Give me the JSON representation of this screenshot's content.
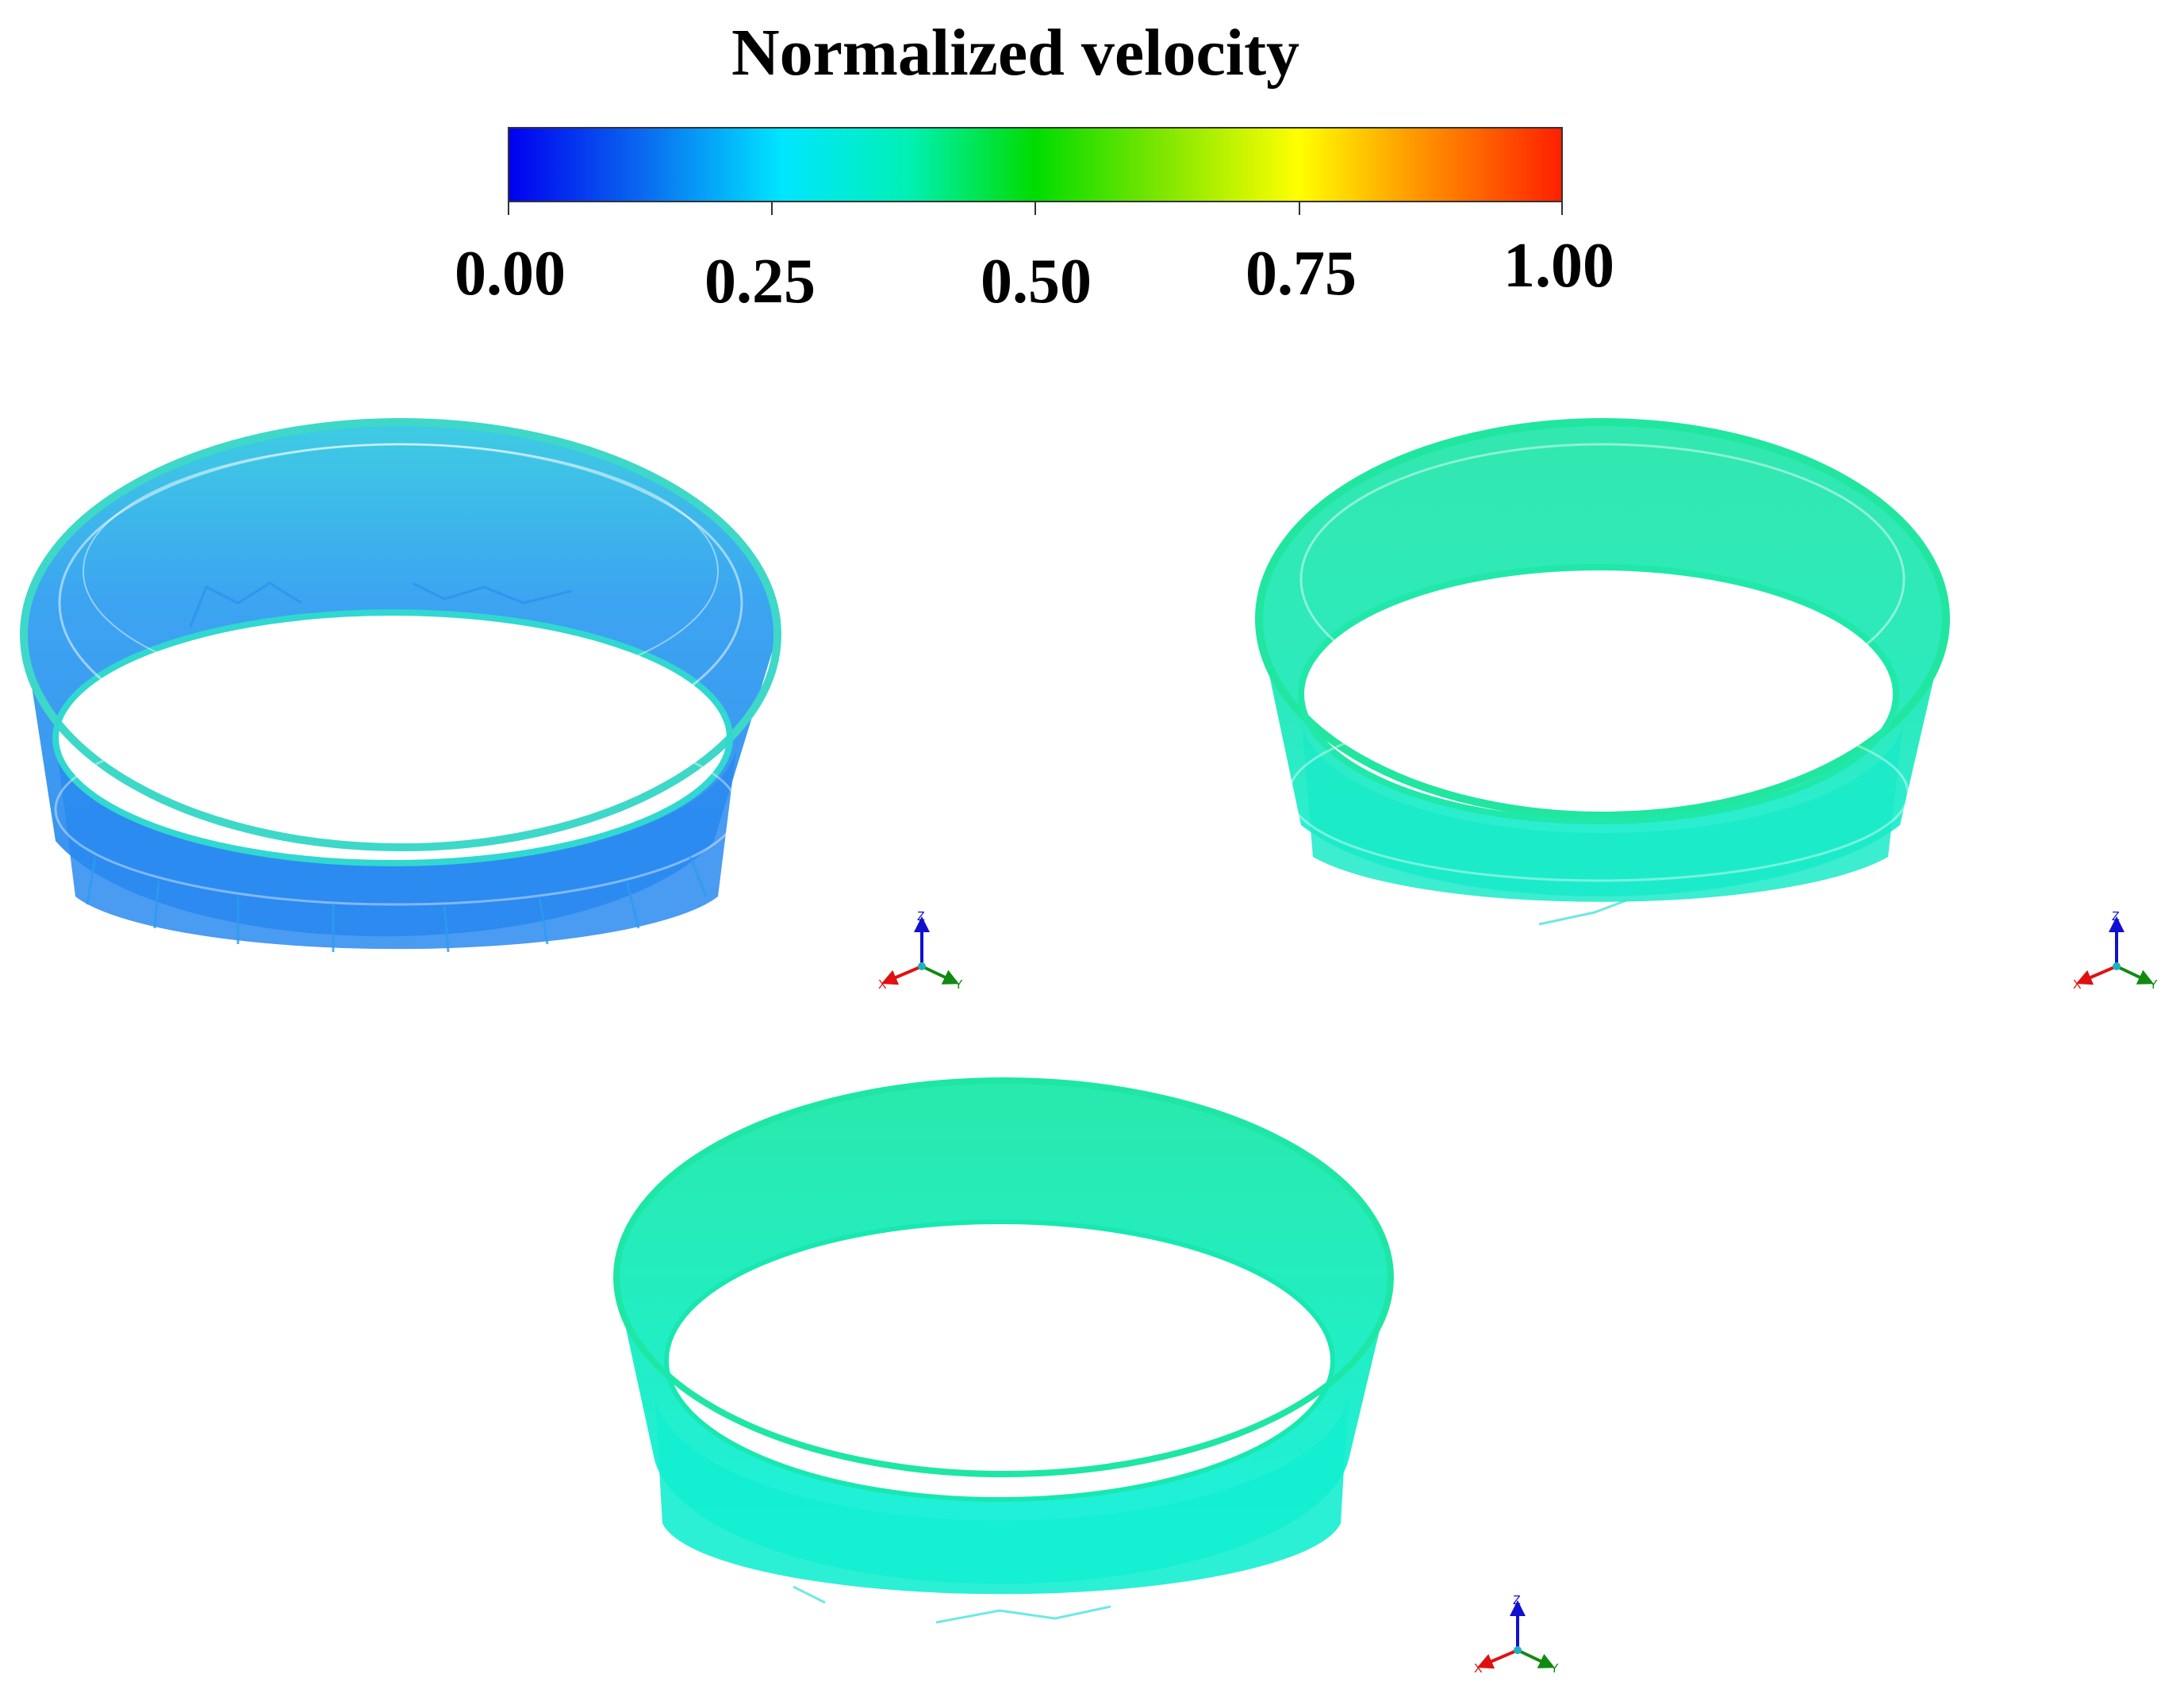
{
  "legend": {
    "title": "Normalized velocity",
    "ticks": [
      {
        "label": "0.00",
        "value": 0.0
      },
      {
        "label": "0.25",
        "value": 0.25
      },
      {
        "label": "0.50",
        "value": 0.5
      },
      {
        "label": "0.75",
        "value": 0.75
      },
      {
        "label": "1.00",
        "value": 1.0
      }
    ]
  },
  "views": [
    {
      "name": "ring-view-left",
      "dominant_color": "#2b8ef0",
      "rim_color": "#3fd6d0"
    },
    {
      "name": "ring-view-right",
      "dominant_color": "#1ee6b4",
      "rim_color": "#20e8a0"
    },
    {
      "name": "ring-view-bottom",
      "dominant_color": "#16edc8",
      "rim_color": "#16e8a8"
    }
  ],
  "axes_labels": {
    "x": "X",
    "y": "Y",
    "z": "Z"
  },
  "colors": {
    "x_axis": "#e01010",
    "y_axis": "#108a10",
    "z_axis": "#1010d0",
    "origin": "#20b0c0"
  }
}
